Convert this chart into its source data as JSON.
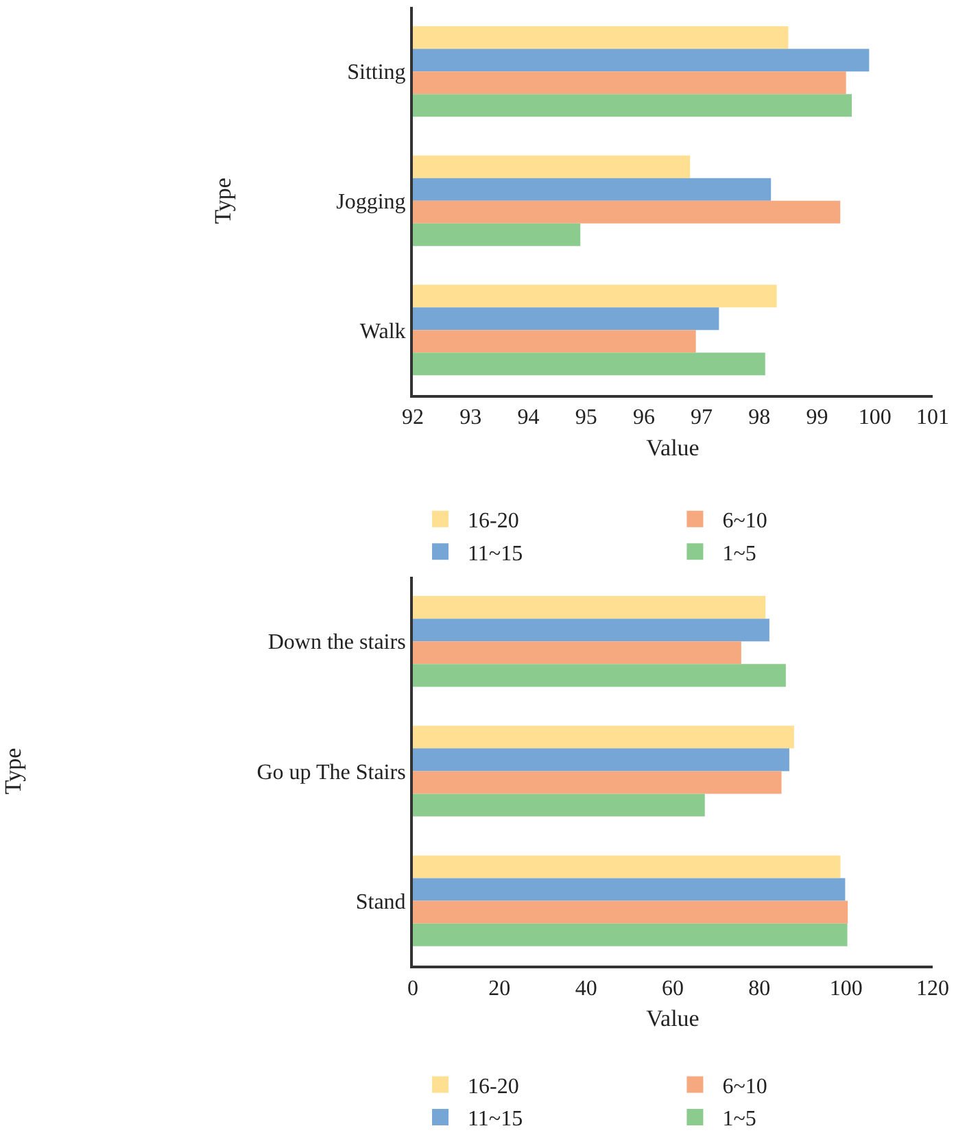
{
  "chart_data": [
    {
      "type": "bar",
      "orientation": "horizontal",
      "xlabel": "Value",
      "ylabel": "Type",
      "categories": [
        "Sitting",
        "Jogging",
        "Walk"
      ],
      "series": [
        {
          "name": "16-20",
          "color": "#ffdf91",
          "values": [
            98.5,
            96.8,
            98.3
          ]
        },
        {
          "name": "11~15",
          "color": "#76a6d6",
          "values": [
            99.9,
            98.2,
            97.3
          ]
        },
        {
          "name": "6~10",
          "color": "#f6a87e",
          "values": [
            99.5,
            99.4,
            96.9
          ]
        },
        {
          "name": "1~5",
          "color": "#8bcb8e",
          "values": [
            99.6,
            94.9,
            98.1
          ]
        }
      ],
      "xlim": [
        92,
        101
      ],
      "xticks": [
        92,
        93,
        94,
        95,
        96,
        97,
        98,
        99,
        100,
        101
      ],
      "legend": "bottom"
    },
    {
      "type": "bar",
      "orientation": "horizontal",
      "xlabel": "Value",
      "ylabel": "Type",
      "categories": [
        "Down the stairs",
        "Go up The Stairs",
        "Stand"
      ],
      "series": [
        {
          "name": "16-20",
          "color": "#ffdf91",
          "values": [
            81.4,
            88.0,
            98.7
          ]
        },
        {
          "name": "11~15",
          "color": "#76a6d6",
          "values": [
            82.3,
            86.9,
            99.8
          ]
        },
        {
          "name": "6~10",
          "color": "#f6a87e",
          "values": [
            75.8,
            85.1,
            100.4
          ]
        },
        {
          "name": "1~5",
          "color": "#8bcb8e",
          "values": [
            86.1,
            67.4,
            100.3
          ]
        }
      ],
      "xlim": [
        0,
        120
      ],
      "xticks": [
        0,
        20,
        40,
        60,
        80,
        100,
        120
      ],
      "legend": "bottom"
    }
  ]
}
